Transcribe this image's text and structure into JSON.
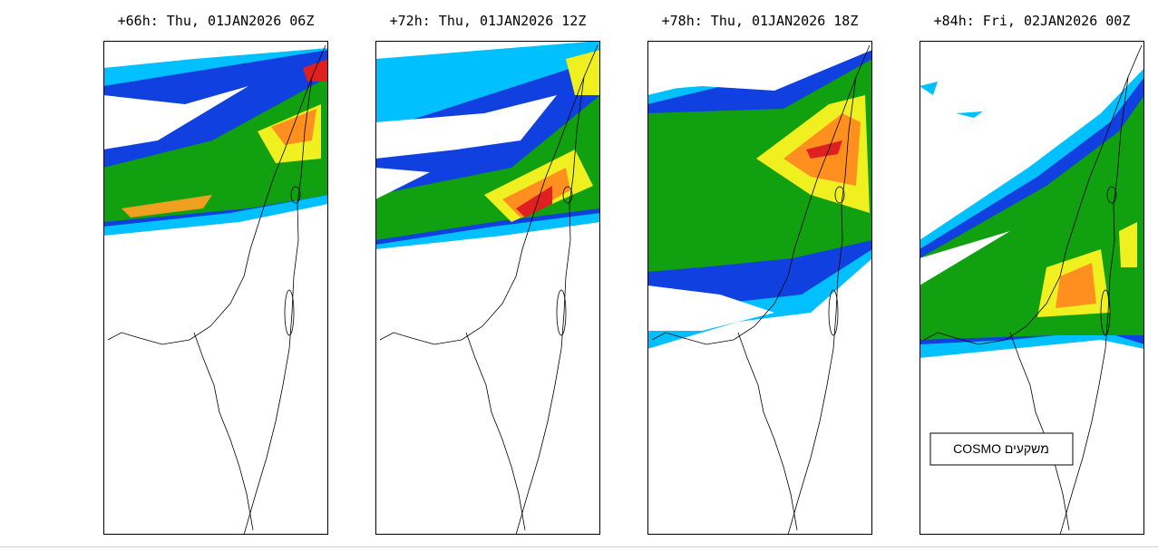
{
  "panels": [
    {
      "title": "+66h: Thu, 01JAN2026 06Z"
    },
    {
      "title": "+72h: Thu, 01JAN2026 12Z"
    },
    {
      "title": "+78h: Thu, 01JAN2026 18Z"
    },
    {
      "title": "+84h: Fri, 02JAN2026 00Z"
    }
  ],
  "label": "משקעים COSMO"
}
